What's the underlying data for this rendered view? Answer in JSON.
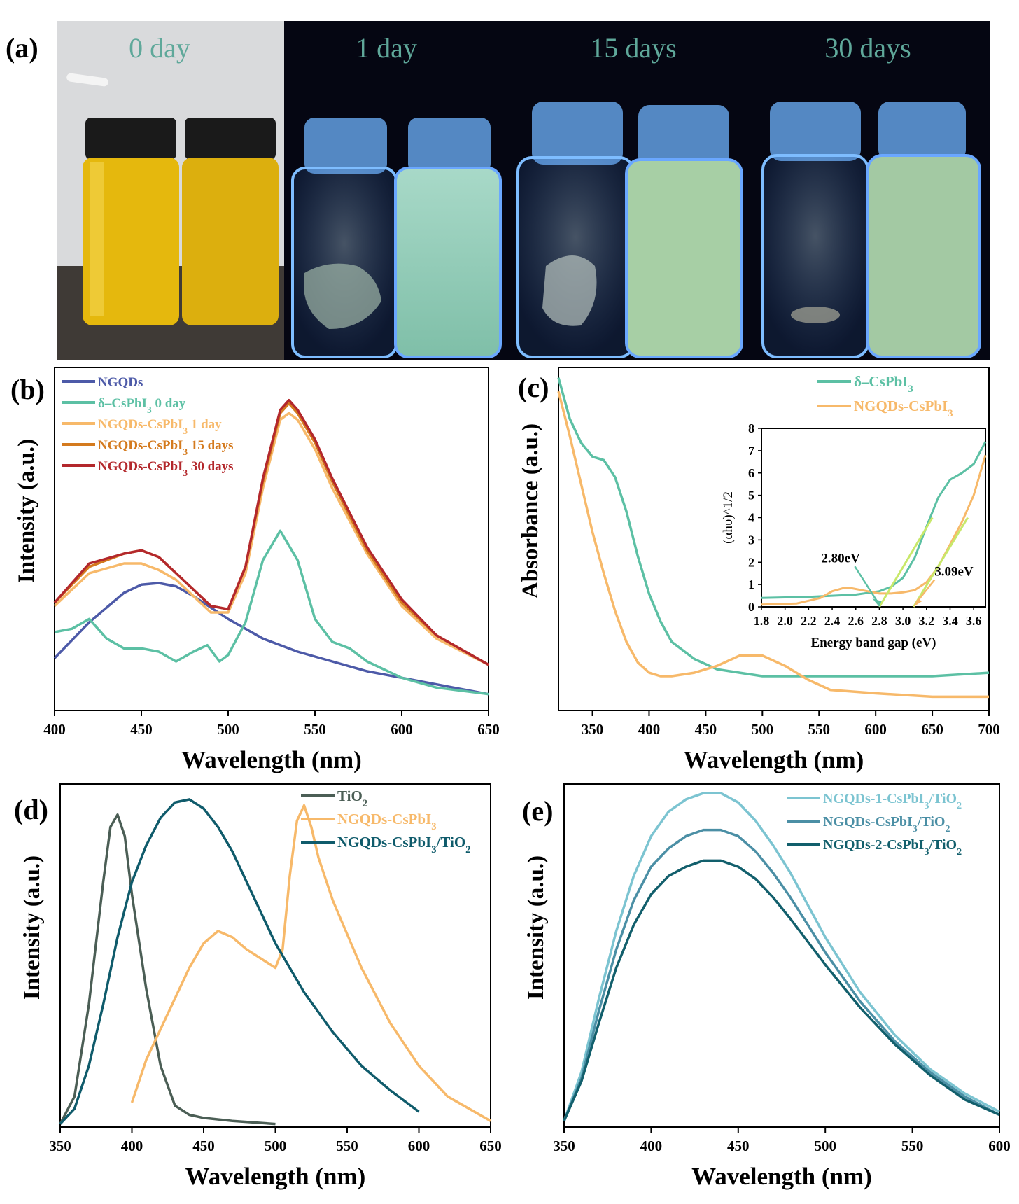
{
  "panel_a": {
    "label": "(a)",
    "photos": [
      {
        "caption": "0 day",
        "scene": "daylight"
      },
      {
        "caption": "1 day",
        "scene": "uv"
      },
      {
        "caption": "15 days",
        "scene": "uv"
      },
      {
        "caption": "30 days",
        "scene": "uv"
      }
    ],
    "colors": {
      "caption": "#5fa89a",
      "uv_bg": "#050612",
      "vial_glow": "#5aa7ff",
      "yellow": "#e5b80d"
    }
  },
  "chart_data": [
    {
      "id": "b",
      "panel_label": "(b)",
      "type": "line",
      "xlabel": "Wavelength (nm)",
      "ylabel": "Intensity (a.u.)",
      "xlim": [
        400,
        650
      ],
      "ylim": [
        0,
        1.05
      ],
      "xticks": [
        "400",
        "450",
        "500",
        "550",
        "600",
        "650"
      ],
      "legend_position": "top-left",
      "series": [
        {
          "name": "NGQDs",
          "color": "#4d5aa8",
          "x": [
            400,
            420,
            440,
            450,
            460,
            470,
            480,
            500,
            520,
            540,
            560,
            580,
            600,
            620,
            650
          ],
          "y": [
            0.16,
            0.27,
            0.36,
            0.385,
            0.39,
            0.38,
            0.35,
            0.28,
            0.22,
            0.18,
            0.15,
            0.12,
            0.1,
            0.08,
            0.05
          ]
        },
        {
          "name": "δ–CsPbI3 0 day",
          "color": "#5cc0a4",
          "x": [
            400,
            410,
            420,
            430,
            440,
            450,
            460,
            470,
            480,
            488,
            495,
            500,
            510,
            520,
            530,
            540,
            550,
            560,
            570,
            580,
            600,
            620,
            650
          ],
          "y": [
            0.24,
            0.25,
            0.28,
            0.22,
            0.19,
            0.19,
            0.18,
            0.15,
            0.18,
            0.2,
            0.15,
            0.17,
            0.27,
            0.46,
            0.55,
            0.46,
            0.28,
            0.21,
            0.19,
            0.15,
            0.1,
            0.07,
            0.05
          ]
        },
        {
          "name": "NGQDs-CsPbI3 1 day",
          "color": "#f7b96a",
          "x": [
            400,
            420,
            440,
            450,
            460,
            470,
            480,
            490,
            500,
            510,
            520,
            530,
            535,
            540,
            550,
            560,
            580,
            600,
            620,
            650
          ],
          "y": [
            0.32,
            0.42,
            0.45,
            0.45,
            0.43,
            0.4,
            0.35,
            0.3,
            0.3,
            0.42,
            0.68,
            0.89,
            0.91,
            0.89,
            0.8,
            0.68,
            0.48,
            0.32,
            0.22,
            0.14
          ]
        },
        {
          "name": "NGQDs-CsPbI3 15 days",
          "color": "#d47a1e",
          "x": [
            400,
            420,
            440,
            450,
            460,
            470,
            480,
            490,
            500,
            510,
            520,
            530,
            535,
            540,
            550,
            560,
            580,
            600,
            620,
            650
          ],
          "y": [
            0.33,
            0.44,
            0.48,
            0.49,
            0.47,
            0.42,
            0.37,
            0.32,
            0.31,
            0.44,
            0.7,
            0.91,
            0.94,
            0.91,
            0.82,
            0.7,
            0.49,
            0.33,
            0.23,
            0.14
          ]
        },
        {
          "name": "NGQDs-CsPbI3 30 days",
          "color": "#b3282c",
          "x": [
            400,
            420,
            440,
            450,
            460,
            470,
            480,
            490,
            500,
            510,
            520,
            530,
            535,
            540,
            550,
            560,
            580,
            600,
            620,
            650
          ],
          "y": [
            0.33,
            0.45,
            0.48,
            0.49,
            0.47,
            0.42,
            0.37,
            0.32,
            0.31,
            0.44,
            0.71,
            0.92,
            0.95,
            0.92,
            0.83,
            0.71,
            0.5,
            0.34,
            0.23,
            0.14
          ]
        }
      ]
    },
    {
      "id": "c",
      "panel_label": "(c)",
      "type": "line",
      "xlabel": "Wavelength (nm)",
      "ylabel": "Absorbance (a.u.)",
      "xlim": [
        320,
        700
      ],
      "ylim": [
        0,
        1
      ],
      "xticks": [
        "350",
        "400",
        "450",
        "500",
        "550",
        "600",
        "650",
        "700"
      ],
      "legend_position": "top-right",
      "series": [
        {
          "name": "δ–CsPbI3",
          "color": "#5cc0a4",
          "x": [
            320,
            330,
            340,
            350,
            360,
            370,
            380,
            390,
            400,
            410,
            420,
            440,
            460,
            480,
            500,
            550,
            600,
            650,
            700
          ],
          "y": [
            0.97,
            0.85,
            0.78,
            0.74,
            0.73,
            0.68,
            0.58,
            0.45,
            0.34,
            0.26,
            0.2,
            0.15,
            0.12,
            0.11,
            0.1,
            0.1,
            0.1,
            0.1,
            0.11
          ]
        },
        {
          "name": "NGQDs-CsPbI3",
          "color": "#f7b96a",
          "x": [
            320,
            330,
            340,
            350,
            360,
            370,
            380,
            390,
            400,
            410,
            420,
            440,
            460,
            480,
            500,
            520,
            540,
            560,
            600,
            650,
            700
          ],
          "y": [
            0.93,
            0.8,
            0.66,
            0.52,
            0.4,
            0.29,
            0.2,
            0.14,
            0.11,
            0.1,
            0.1,
            0.11,
            0.13,
            0.16,
            0.16,
            0.13,
            0.09,
            0.06,
            0.05,
            0.04,
            0.04
          ]
        }
      ],
      "inset": {
        "xlabel": "Energy band gap (eV)",
        "ylabel": "(αhυ)^1/2",
        "xlim": [
          1.8,
          3.7
        ],
        "ylim": [
          0,
          8
        ],
        "xticks": [
          "1.8",
          "2.0",
          "2.2",
          "2.4",
          "2.6",
          "2.8",
          "3.0",
          "3.2",
          "3.4",
          "3.6"
        ],
        "yticks": [
          "0",
          "1",
          "2",
          "3",
          "4",
          "5",
          "6",
          "7",
          "8"
        ],
        "annotations": [
          {
            "text": "2.80eV",
            "x": 2.8,
            "color": "#5cc0a4"
          },
          {
            "text": "3.09eV",
            "x": 3.09,
            "color": "#f7b96a"
          }
        ],
        "series": [
          {
            "name": "δ–CsPbI3",
            "color": "#5cc0a4",
            "x": [
              1.8,
              2.2,
              2.6,
              2.8,
              2.9,
              3.0,
              3.1,
              3.2,
              3.3,
              3.4,
              3.5,
              3.6,
              3.7
            ],
            "y": [
              0.4,
              0.45,
              0.55,
              0.7,
              0.9,
              1.3,
              2.2,
              3.6,
              4.9,
              5.7,
              6.0,
              6.4,
              7.4
            ]
          },
          {
            "name": "NGQDs-CsPbI3",
            "color": "#f7b96a",
            "x": [
              1.8,
              2.1,
              2.3,
              2.4,
              2.5,
              2.55,
              2.6,
              2.7,
              2.8,
              2.9,
              3.0,
              3.1,
              3.2,
              3.3,
              3.4,
              3.5,
              3.6,
              3.7
            ],
            "y": [
              0.1,
              0.15,
              0.4,
              0.7,
              0.85,
              0.85,
              0.8,
              0.7,
              0.6,
              0.6,
              0.65,
              0.75,
              1.1,
              1.8,
              2.8,
              3.8,
              5.0,
              6.8
            ]
          }
        ]
      }
    },
    {
      "id": "d",
      "panel_label": "(d)",
      "type": "line",
      "xlabel": "Wavelength (nm)",
      "ylabel": "Intensity (a.u.)",
      "xlim": [
        350,
        650
      ],
      "ylim": [
        0,
        1.12
      ],
      "xticks": [
        "350",
        "400",
        "450",
        "500",
        "550",
        "600",
        "650"
      ],
      "legend_position": "top-right",
      "series": [
        {
          "name": "TiO2",
          "color": "#4b5e55",
          "x": [
            350,
            360,
            370,
            380,
            385,
            390,
            395,
            400,
            410,
            420,
            430,
            440,
            450,
            470,
            500
          ],
          "y": [
            0.01,
            0.1,
            0.4,
            0.8,
            0.98,
            1.02,
            0.95,
            0.76,
            0.45,
            0.2,
            0.07,
            0.04,
            0.03,
            0.02,
            0.01
          ]
        },
        {
          "name": "NGQDs-CsPbI3",
          "color": "#f7b96a",
          "x": [
            400,
            410,
            420,
            430,
            440,
            450,
            460,
            470,
            480,
            490,
            500,
            505,
            510,
            515,
            520,
            525,
            530,
            540,
            560,
            580,
            600,
            620,
            650
          ],
          "y": [
            0.08,
            0.22,
            0.32,
            0.42,
            0.52,
            0.6,
            0.64,
            0.62,
            0.58,
            0.55,
            0.52,
            0.58,
            0.82,
            1.0,
            1.05,
            0.98,
            0.88,
            0.74,
            0.52,
            0.34,
            0.2,
            0.1,
            0.02
          ]
        },
        {
          "name": "NGQDs-CsPbI3/TiO2",
          "color": "#0f5b6b",
          "x": [
            350,
            360,
            370,
            380,
            390,
            400,
            410,
            420,
            430,
            440,
            450,
            460,
            470,
            480,
            500,
            520,
            540,
            560,
            580,
            600
          ],
          "y": [
            0.01,
            0.06,
            0.2,
            0.4,
            0.62,
            0.8,
            0.92,
            1.01,
            1.06,
            1.07,
            1.04,
            0.98,
            0.9,
            0.8,
            0.6,
            0.44,
            0.31,
            0.2,
            0.12,
            0.05
          ]
        }
      ]
    },
    {
      "id": "e",
      "panel_label": "(e)",
      "type": "line",
      "xlabel": "Wavelength (nm)",
      "ylabel": "Intensity (a.u.)",
      "xlim": [
        350,
        600
      ],
      "ylim": [
        0,
        1.12
      ],
      "xticks": [
        "350",
        "400",
        "450",
        "500",
        "550",
        "600"
      ],
      "legend_position": "top-right",
      "series": [
        {
          "name": "NGQDs-1-CsPbI3/TiO2",
          "color": "#7cc4d1",
          "x": [
            350,
            360,
            370,
            380,
            390,
            400,
            410,
            420,
            430,
            440,
            450,
            460,
            470,
            480,
            500,
            520,
            540,
            560,
            580,
            600
          ],
          "y": [
            0.02,
            0.18,
            0.42,
            0.64,
            0.82,
            0.95,
            1.03,
            1.07,
            1.09,
            1.09,
            1.06,
            1.0,
            0.92,
            0.83,
            0.62,
            0.44,
            0.3,
            0.19,
            0.11,
            0.05
          ]
        },
        {
          "name": "NGQDs-CsPbI3/TiO2",
          "color": "#4b8fa5",
          "x": [
            350,
            360,
            370,
            380,
            390,
            400,
            410,
            420,
            430,
            440,
            450,
            460,
            470,
            480,
            500,
            520,
            540,
            560,
            580,
            600
          ],
          "y": [
            0.02,
            0.16,
            0.38,
            0.58,
            0.74,
            0.85,
            0.91,
            0.95,
            0.97,
            0.97,
            0.95,
            0.9,
            0.83,
            0.75,
            0.57,
            0.41,
            0.28,
            0.18,
            0.1,
            0.04
          ]
        },
        {
          "name": "NGQDs-2-CsPbI3/TiO2",
          "color": "#125f6c",
          "x": [
            350,
            360,
            370,
            380,
            390,
            400,
            410,
            420,
            430,
            440,
            450,
            460,
            470,
            480,
            500,
            520,
            540,
            560,
            580,
            600
          ],
          "y": [
            0.02,
            0.15,
            0.34,
            0.52,
            0.66,
            0.76,
            0.82,
            0.85,
            0.87,
            0.87,
            0.85,
            0.81,
            0.75,
            0.68,
            0.53,
            0.39,
            0.27,
            0.17,
            0.09,
            0.04
          ]
        }
      ]
    }
  ]
}
